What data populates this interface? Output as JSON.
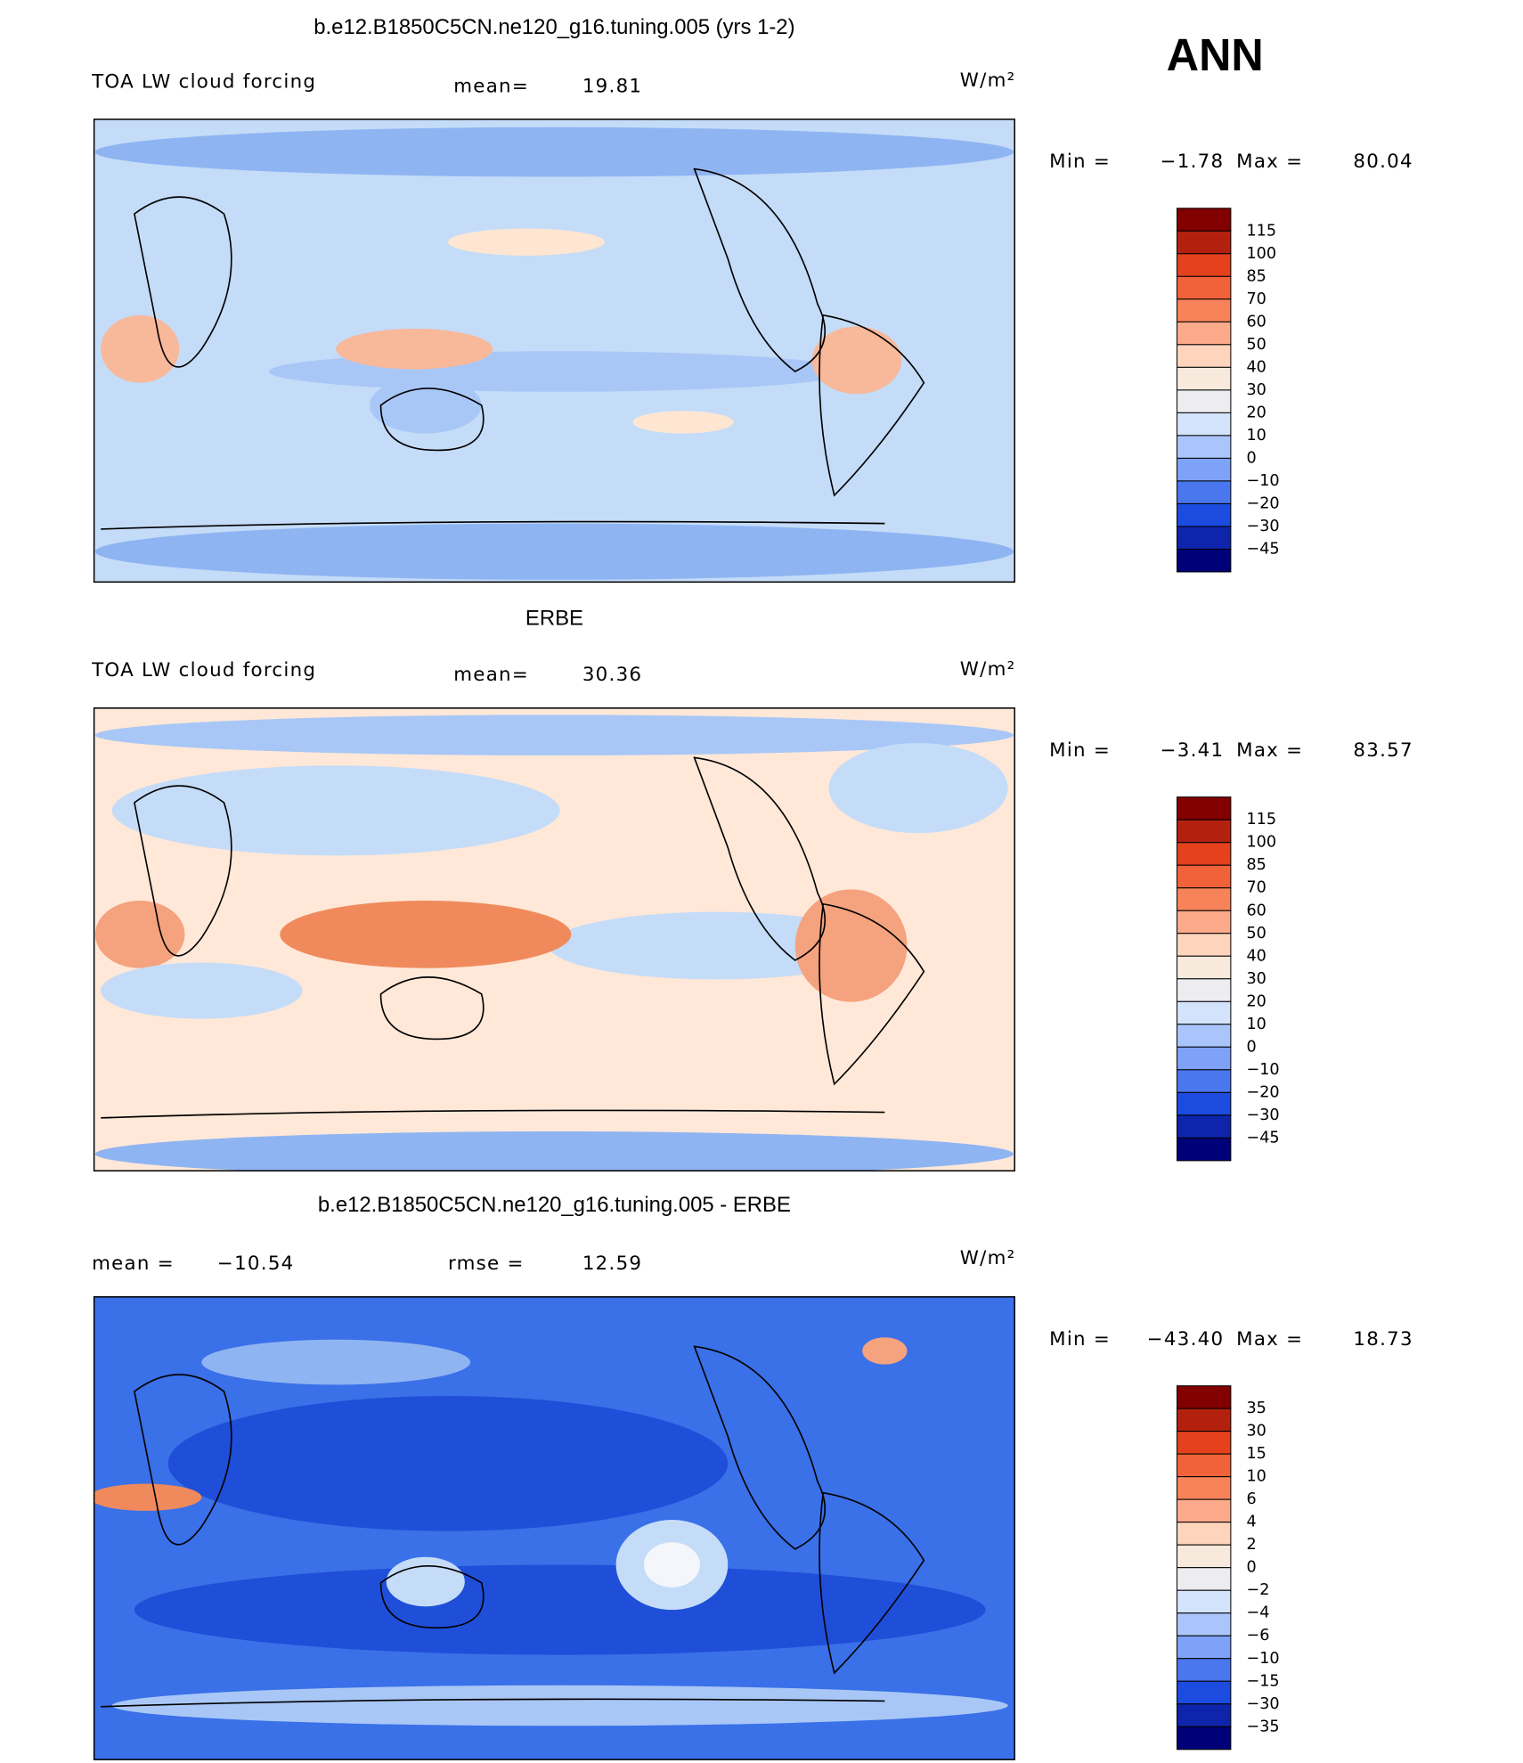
{
  "header": {
    "season": "ANN"
  },
  "panels": [
    {
      "title": "b.e12.B1850C5CN.ne120_g16.tuning.005 (yrs 1-2)",
      "variable": "TOA LW cloud forcing",
      "stats": [
        {
          "label": "mean=",
          "value": "19.81"
        }
      ],
      "units": "W/m²",
      "min_label": "Min =",
      "min": "−1.78",
      "max_label": "Max =",
      "max": "80.04",
      "levels": [
        "115",
        "100",
        "85",
        "70",
        "60",
        "50",
        "40",
        "30",
        "20",
        "10",
        "0",
        "−10",
        "−20",
        "−30",
        "−45"
      ]
    },
    {
      "title": "ERBE",
      "variable": "TOA LW cloud forcing",
      "stats": [
        {
          "label": "mean=",
          "value": "30.36"
        }
      ],
      "units": "W/m²",
      "min_label": "Min =",
      "min": "−3.41",
      "max_label": "Max =",
      "max": "83.57",
      "levels": [
        "115",
        "100",
        "85",
        "70",
        "60",
        "50",
        "40",
        "30",
        "20",
        "10",
        "0",
        "−10",
        "−20",
        "−30",
        "−45"
      ]
    },
    {
      "title": "b.e12.B1850C5CN.ne120_g16.tuning.005 - ERBE",
      "stats": [
        {
          "label": "mean =",
          "value": "−10.54"
        },
        {
          "label": "rmse =",
          "value": "12.59"
        }
      ],
      "units": "W/m²",
      "min_label": "Min =",
      "min": "−43.40",
      "max_label": "Max =",
      "max": "18.73",
      "levels": [
        "35",
        "30",
        "15",
        "10",
        "6",
        "4",
        "2",
        "0",
        "−2",
        "−4",
        "−6",
        "−10",
        "−15",
        "−30",
        "−35"
      ]
    }
  ]
}
